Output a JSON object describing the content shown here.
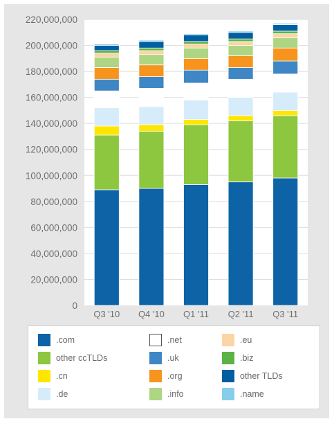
{
  "chart_data": {
    "type": "bar",
    "stacked": true,
    "categories": [
      "Q3 '10",
      "Q4 '10",
      "Q1 '11",
      "Q2 '11",
      "Q3 '11"
    ],
    "ylim": [
      0,
      220000000
    ],
    "yticks": [
      "0",
      "20,000,000",
      "40,000,000",
      "60,000,000",
      "80,000,000",
      "100,000,000",
      "120,000,000",
      "140,000,000",
      "160,000,000",
      "180,000,000",
      "200,000,000",
      "220,000,000"
    ],
    "grid": true,
    "legend_position": "bottom",
    "series": [
      {
        "name": ".com",
        "color": "#0e63a6",
        "values": [
          89000000,
          90000000,
          93000000,
          95000000,
          98000000
        ]
      },
      {
        "name": "other ccTLDs",
        "color": "#8dc63f",
        "values": [
          42000000,
          44000000,
          46000000,
          47000000,
          48000000
        ]
      },
      {
        "name": ".cn",
        "color": "#ffe600",
        "values": [
          7000000,
          5000000,
          4000000,
          4000000,
          4000000
        ]
      },
      {
        "name": ".de",
        "color": "#d6ecfa",
        "values": [
          14000000,
          14000000,
          15000000,
          14000000,
          14000000
        ]
      },
      {
        "name": ".net",
        "color": "#ffffff",
        "values": [
          13000000,
          14000000,
          13000000,
          14000000,
          14000000
        ]
      },
      {
        "name": ".uk",
        "color": "#3f86c4",
        "values": [
          9000000,
          9000000,
          10000000,
          9000000,
          10000000
        ]
      },
      {
        "name": ".org",
        "color": "#f7941d",
        "values": [
          9000000,
          9000000,
          9000000,
          9000000,
          10000000
        ]
      },
      {
        "name": ".info",
        "color": "#aed581",
        "values": [
          8000000,
          8000000,
          8000000,
          8000000,
          8000000
        ]
      },
      {
        "name": ".eu",
        "color": "#fbd5a5",
        "values": [
          3000000,
          3000000,
          3000000,
          3000000,
          3000000
        ]
      },
      {
        "name": ".biz",
        "color": "#5bb346",
        "values": [
          2000000,
          2000000,
          2000000,
          2000000,
          2000000
        ]
      },
      {
        "name": "other TLDs",
        "color": "#005fa0",
        "values": [
          4000000,
          5000000,
          5000000,
          5000000,
          5000000
        ]
      },
      {
        "name": ".name",
        "color": "#87ceeb",
        "values": [
          1000000,
          1000000,
          1000000,
          1000000,
          1000000
        ]
      }
    ]
  },
  "legend": {
    "items": [
      {
        "label": ".com",
        "color": "#0e63a6",
        "col": 0,
        "row": 0
      },
      {
        "label": "other ccTLDs",
        "color": "#8dc63f",
        "col": 0,
        "row": 1
      },
      {
        "label": ".cn",
        "color": "#ffe600",
        "col": 0,
        "row": 2
      },
      {
        "label": ".de",
        "color": "#d6ecfa",
        "col": 0,
        "row": 3
      },
      {
        "label": ".net",
        "color": "#ffffff",
        "col": 1,
        "row": 0
      },
      {
        "label": ".uk",
        "color": "#3f86c4",
        "col": 1,
        "row": 1
      },
      {
        "label": ".org",
        "color": "#f7941d",
        "col": 1,
        "row": 2
      },
      {
        "label": ".info",
        "color": "#aed581",
        "col": 1,
        "row": 3
      },
      {
        "label": ".eu",
        "color": "#fbd5a5",
        "col": 2,
        "row": 0
      },
      {
        "label": ".biz",
        "color": "#5bb346",
        "col": 2,
        "row": 1
      },
      {
        "label": "other TLDs",
        "color": "#005fa0",
        "col": 2,
        "row": 2
      },
      {
        "label": ".name",
        "color": "#87ceeb",
        "col": 2,
        "row": 3
      }
    ]
  }
}
